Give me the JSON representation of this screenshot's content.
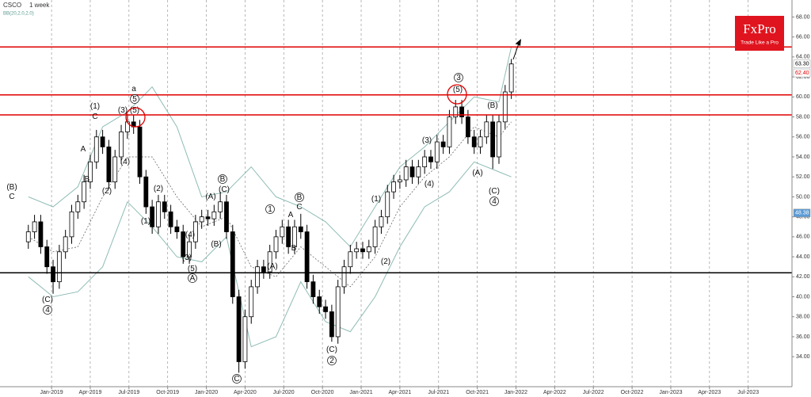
{
  "chart_data": {
    "type": "candlestick",
    "title": "CSCO",
    "subtitle": "1 week",
    "indicator": "BB(20,2.0,2.0)",
    "brand": {
      "name": "FxPro",
      "tagline": "Trade Like a Pro",
      "color": "#e0141e"
    },
    "xlim": [
      2018.667,
      2023.783
    ],
    "xticks": [
      {
        "value": 2019.0,
        "label": "Jan-2019"
      },
      {
        "value": 2019.25,
        "label": "Apr-2019"
      },
      {
        "value": 2019.5,
        "label": "Jul-2019"
      },
      {
        "value": 2019.75,
        "label": "Oct-2019"
      },
      {
        "value": 2020.0,
        "label": "Jan-2020"
      },
      {
        "value": 2020.25,
        "label": "Apr-2020"
      },
      {
        "value": 2020.5,
        "label": "Jul-2020"
      },
      {
        "value": 2020.75,
        "label": "Oct-2020"
      },
      {
        "value": 2021.0,
        "label": "Jan-2021"
      },
      {
        "value": 2021.25,
        "label": "Apr-2021"
      },
      {
        "value": 2021.5,
        "label": "Jul-2021"
      },
      {
        "value": 2021.75,
        "label": "Oct-2021"
      },
      {
        "value": 2022.0,
        "label": "Jan-2022"
      },
      {
        "value": 2022.25,
        "label": "Apr-2022"
      },
      {
        "value": 2022.5,
        "label": "Jul-2022"
      },
      {
        "value": 2022.75,
        "label": "Oct-2022"
      },
      {
        "value": 2023.0,
        "label": "Jan-2023"
      },
      {
        "value": 2023.25,
        "label": "Apr-2023"
      },
      {
        "value": 2023.5,
        "label": "Jul-2023"
      }
    ],
    "ylim": [
      31,
      69.7
    ],
    "yticks": [
      {
        "value": 34,
        "label": "34.00"
      },
      {
        "value": 36,
        "label": "36.00"
      },
      {
        "value": 38,
        "label": "38.00"
      },
      {
        "value": 40,
        "label": "40.00"
      },
      {
        "value": 42,
        "label": "42.00"
      },
      {
        "value": 44,
        "label": "44.00"
      },
      {
        "value": 46,
        "label": "46.00"
      },
      {
        "value": 48,
        "label": "48.00"
      },
      {
        "value": 50,
        "label": "50.00"
      },
      {
        "value": 52,
        "label": "52.00"
      },
      {
        "value": 54,
        "label": "54.00"
      },
      {
        "value": 56,
        "label": "56.00"
      },
      {
        "value": 58,
        "label": "58.00"
      },
      {
        "value": 60,
        "label": "60.00"
      },
      {
        "value": 62,
        "label": "62.00"
      },
      {
        "value": 64,
        "label": "64.00"
      },
      {
        "value": 66,
        "label": "66.00"
      },
      {
        "value": 68,
        "label": "68.00"
      }
    ],
    "grid": true,
    "up_color": "#ffffff",
    "down_color": "#000000",
    "x": [
      2018.85,
      2018.89,
      2018.93,
      2018.97,
      2019.01,
      2019.05,
      2019.09,
      2019.13,
      2019.17,
      2019.21,
      2019.25,
      2019.29,
      2019.33,
      2019.37,
      2019.41,
      2019.45,
      2019.49,
      2019.53,
      2019.57,
      2019.61,
      2019.65,
      2019.69,
      2019.73,
      2019.77,
      2019.81,
      2019.85,
      2019.89,
      2019.93,
      2019.97,
      2020.01,
      2020.05,
      2020.09,
      2020.13,
      2020.17,
      2020.21,
      2020.25,
      2020.29,
      2020.33,
      2020.37,
      2020.41,
      2020.45,
      2020.49,
      2020.53,
      2020.57,
      2020.61,
      2020.65,
      2020.69,
      2020.73,
      2020.77,
      2020.81,
      2020.85,
      2020.89,
      2020.93,
      2020.97,
      2021.01,
      2021.05,
      2021.09,
      2021.13,
      2021.17,
      2021.21,
      2021.25,
      2021.29,
      2021.33,
      2021.37,
      2021.41,
      2021.45,
      2021.49,
      2021.53,
      2021.57,
      2021.61,
      2021.65,
      2021.69,
      2021.73,
      2021.77,
      2021.81,
      2021.85,
      2021.89,
      2021.93,
      2021.97
    ],
    "open": [
      45.5,
      46.5,
      47.5,
      45,
      43,
      41.5,
      44.5,
      46,
      48.5,
      49.5,
      51.5,
      53.5,
      56,
      55,
      51.5,
      54,
      56.5,
      57.5,
      57,
      52,
      49,
      47,
      49.5,
      48.5,
      47,
      46.5,
      44,
      45.5,
      47.5,
      48,
      47.8,
      48.5,
      49.5,
      46.5,
      40,
      33.5,
      38,
      41,
      43,
      42.5,
      44.5,
      46,
      47,
      45,
      47,
      46.5,
      41.5,
      40,
      39,
      38.5,
      36,
      41,
      43,
      44.5,
      44.8,
      44.5,
      45,
      47,
      48,
      50.5,
      51.5,
      51.7,
      53,
      52,
      53,
      54,
      53.5,
      55.5,
      55,
      58,
      59,
      58,
      56,
      55,
      56,
      57.5,
      54,
      57.5,
      60.5
    ],
    "high": [
      47.2,
      48.2,
      48.2,
      45.7,
      43.7,
      45.2,
      46.7,
      49.2,
      50.2,
      52.2,
      54.2,
      56.7,
      56.7,
      55.7,
      54.7,
      57.2,
      58.3,
      58.2,
      57.7,
      52.7,
      49.7,
      50.2,
      50.2,
      49.2,
      47.7,
      47.2,
      46.2,
      48.2,
      48.7,
      48.7,
      49.2,
      50.5,
      50.2,
      47.2,
      40.7,
      38.7,
      41.7,
      43.7,
      43.7,
      45.2,
      46.7,
      47.7,
      47.7,
      47.7,
      48.3,
      47.2,
      42.2,
      40.7,
      39.7,
      39.2,
      41.7,
      43.7,
      45.2,
      45.5,
      45.5,
      45.7,
      47.7,
      48.7,
      51.2,
      52.2,
      52.2,
      53.7,
      53.7,
      53.7,
      54.7,
      54.7,
      56.2,
      56.2,
      58.7,
      59.7,
      59.7,
      58.7,
      56.7,
      56.7,
      58.2,
      58.2,
      58.2,
      61.2,
      63.8
    ],
    "low": [
      44.8,
      45.8,
      44.3,
      42.3,
      40.3,
      40.8,
      43.8,
      45.3,
      47.8,
      48.8,
      50.8,
      52.8,
      54.3,
      50.8,
      50.8,
      53.3,
      55.8,
      56.3,
      51.3,
      48.3,
      46.3,
      46.3,
      47.8,
      46.3,
      45.8,
      43.3,
      43.3,
      44.8,
      46.8,
      47.1,
      47.1,
      47.8,
      45.8,
      39.3,
      32.4,
      32.8,
      37.3,
      40.3,
      41.8,
      41.8,
      43.8,
      45.3,
      44.3,
      44.3,
      45.8,
      40.8,
      39.3,
      38.3,
      37.8,
      35.5,
      35.3,
      40.3,
      42.3,
      43.8,
      43.8,
      43.8,
      44.3,
      46.3,
      47.3,
      49.8,
      50.8,
      51,
      51.3,
      51.3,
      52.3,
      52.8,
      52.8,
      54.3,
      54.3,
      57.3,
      57.3,
      55.3,
      54.3,
      54.3,
      55.3,
      52.8,
      53.3,
      56.8,
      59.8
    ],
    "close": [
      46.5,
      47.5,
      45,
      43,
      41.5,
      44.5,
      46,
      48.5,
      49.5,
      51.5,
      53.5,
      56,
      55,
      51.5,
      54,
      56.5,
      57.5,
      57,
      52,
      49,
      47,
      49.5,
      48.5,
      47,
      46.5,
      44,
      45.5,
      47.5,
      48,
      47.8,
      48.5,
      49.5,
      46.5,
      40,
      33.5,
      38,
      41,
      43,
      42.5,
      44.5,
      46,
      47,
      45,
      47,
      46.5,
      41.5,
      40,
      39,
      38.5,
      36,
      41,
      43,
      44.5,
      44.8,
      44.5,
      45,
      47,
      48,
      50.5,
      51.5,
      51.7,
      53,
      52,
      53,
      54,
      53.5,
      55.5,
      55,
      58,
      59,
      58,
      56,
      55,
      56,
      57.5,
      54,
      57.5,
      60.5,
      63.3
    ],
    "band_x": [
      2018.85,
      2019.01,
      2019.17,
      2019.33,
      2019.49,
      2019.65,
      2019.81,
      2019.97,
      2020.13,
      2020.29,
      2020.45,
      2020.61,
      2020.77,
      2020.93,
      2021.09,
      2021.25,
      2021.41,
      2021.57,
      2021.73,
      2021.89,
      2021.97
    ],
    "bands": [
      {
        "color": "#8fbcb5",
        "dashed": false,
        "values": [
          50,
          49,
          51,
          57,
          58.5,
          61,
          57,
          50,
          50.5,
          53,
          50,
          49,
          47.5,
          45,
          49,
          53,
          55,
          57.5,
          60,
          59.5,
          65
        ]
      },
      {
        "color": "#555555",
        "dashed": true,
        "values": [
          46,
          44.5,
          45,
          50,
          54,
          54,
          50,
          47,
          48,
          43,
          42,
          45,
          43,
          41,
          44,
          49,
          52,
          54,
          57,
          56,
          57.5
        ]
      },
      {
        "color": "#8fbcb5",
        "dashed": false,
        "values": [
          42,
          40,
          40.5,
          43,
          49.5,
          47,
          44,
          43.5,
          46,
          35,
          36,
          41.5,
          37.5,
          36.5,
          40,
          45,
          49,
          50.5,
          53.5,
          52.5,
          52
        ]
      }
    ],
    "levels": [
      {
        "value": 65,
        "color": "#e00000"
      },
      {
        "value": 60.2,
        "color": "#e00000"
      },
      {
        "value": 58.2,
        "color": "#e00000"
      },
      {
        "value": 42.4,
        "color": "#000000"
      }
    ],
    "price_tags": [
      {
        "value": 63.3,
        "label": "63.30",
        "color": "#000000",
        "fill": "#ffffff"
      },
      {
        "value": 62.4,
        "label": "62.40",
        "color": "#e00000",
        "fill": "#ffffff"
      },
      {
        "value": 48.38,
        "label": "48.38",
        "color": "#ffffff",
        "fill": "#5b9bd5"
      }
    ],
    "annotations": [
      "(B)",
      "C",
      "(C)",
      "4",
      "A",
      "B",
      "(1)",
      "C",
      "(2)",
      "(3)",
      "a",
      "5",
      "(5)",
      "(4)",
      "(2)",
      "(1)",
      "(4)",
      "(3)",
      "(5)",
      "A",
      "(A)",
      "B",
      "(C)",
      "(B)",
      "C",
      "1",
      "A",
      "B",
      "C",
      "B",
      "(A)",
      "(C)",
      "2",
      "(1)",
      "(2)",
      "(3)",
      "(4)",
      "3",
      "(5)",
      "(B)",
      "(A)",
      "(C)",
      "4"
    ]
  }
}
